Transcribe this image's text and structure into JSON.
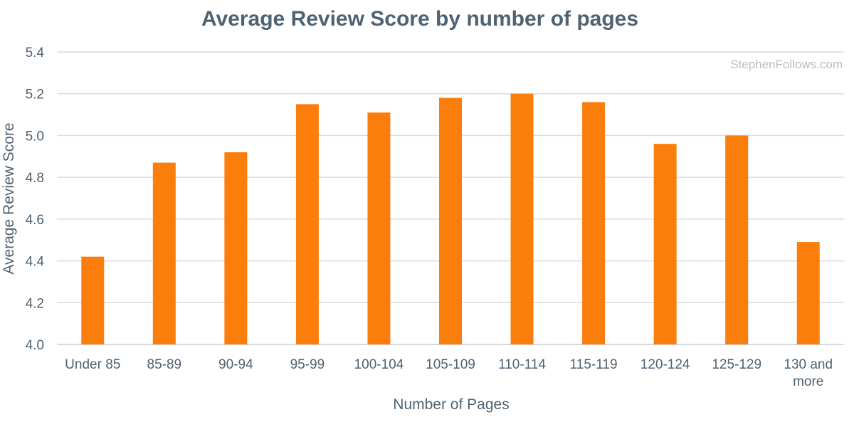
{
  "chart_data": {
    "type": "bar",
    "title": "Average Review Score by number of pages",
    "xlabel": "Number of Pages",
    "ylabel": "Average Review Score",
    "watermark": "StephenFollows.com",
    "categories": [
      "Under 85",
      "85-89",
      "90-94",
      "95-99",
      "100-104",
      "105-109",
      "110-114",
      "115-119",
      "120-124",
      "125-129",
      "130 and more"
    ],
    "values": [
      4.42,
      4.87,
      4.92,
      5.15,
      5.11,
      5.18,
      5.2,
      5.16,
      4.96,
      5.0,
      4.49
    ],
    "ylim": [
      4.0,
      5.4
    ],
    "yticks": [
      "4.0",
      "4.2",
      "4.4",
      "4.6",
      "4.8",
      "5.0",
      "5.2",
      "5.4"
    ],
    "grid": true,
    "legend": "none",
    "colors": {
      "bar": "#fb7d0b",
      "text": "#4f6272",
      "grid": "#d9dde1",
      "watermark": "#b8bec4"
    }
  }
}
